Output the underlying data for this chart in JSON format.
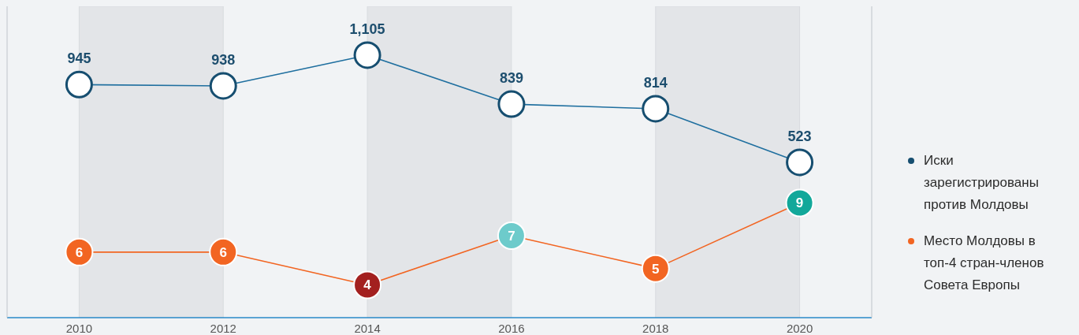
{
  "chart_data": {
    "type": "line",
    "x": [
      2010,
      2012,
      2014,
      2016,
      2018,
      2020
    ],
    "xlim": [
      2009,
      2021
    ],
    "xticks": [
      2010,
      2012,
      2014,
      2016,
      2018,
      2020
    ],
    "ylim": [
      2,
      21
    ],
    "y2lim": [
      -320,
      1370
    ],
    "series": [
      {
        "name": "Иски зарегистрированы против Молдовы",
        "color": "#1f6f9f",
        "axis": "y2",
        "values": [
          945,
          938,
          1105,
          839,
          814,
          523
        ],
        "value_labels": [
          "945",
          "938",
          "1,105",
          "839",
          "814",
          "523"
        ]
      },
      {
        "name": "Место Молдовы в топ-4 стран-членов Совета Европы",
        "color": "#f26522",
        "colors": [
          "#f26522",
          "#f26522",
          "#a3201f",
          "#6dcbcb",
          "#f26522",
          "#12a89a"
        ],
        "values": [
          6,
          6,
          4,
          7,
          5,
          9
        ]
      }
    ],
    "bands": [
      {
        "axis": "x",
        "from": 2010,
        "to": 2012,
        "color": "#e3e5e8"
      },
      {
        "axis": "x",
        "from": 2014,
        "to": 2016,
        "color": "#e3e5e8"
      },
      {
        "axis": "x",
        "from": 2018,
        "to": 2020,
        "color": "#e3e5e8"
      }
    ],
    "data_labels": true,
    "legend": "right",
    "marker": "circle",
    "tick_labels": "x"
  }
}
